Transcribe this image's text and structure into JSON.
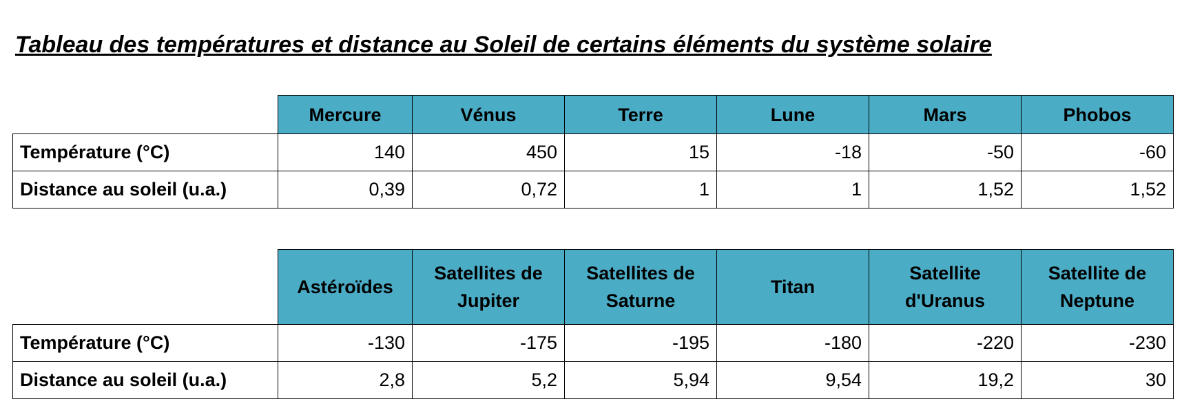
{
  "title": "Tableau des températures et distance au Soleil de certains éléments du système solaire",
  "tables": [
    {
      "headers": [
        "Mercure",
        "Vénus",
        "Terre",
        "Lune",
        "Mars",
        "Phobos"
      ],
      "rows": [
        {
          "label": "Température (°C)",
          "values": [
            "140",
            "450",
            "15",
            "-18",
            "-50",
            "-60"
          ]
        },
        {
          "label": "Distance au soleil (u.a.)",
          "values": [
            "0,39",
            "0,72",
            "1",
            "1",
            "1,52",
            "1,52"
          ]
        }
      ]
    },
    {
      "headers": [
        "Astéroïdes",
        "Satellites de Jupiter",
        "Satellites de Saturne",
        "Titan",
        "Satellite d'Uranus",
        "Satellite de Neptune"
      ],
      "rows": [
        {
          "label": "Température (°C)",
          "values": [
            "-130",
            "-175",
            "-195",
            "-180",
            "-220",
            "-230"
          ]
        },
        {
          "label": "Distance au soleil (u.a.)",
          "values": [
            "2,8",
            "5,2",
            "5,94",
            "9,54",
            "19,2",
            "30"
          ]
        }
      ]
    }
  ]
}
